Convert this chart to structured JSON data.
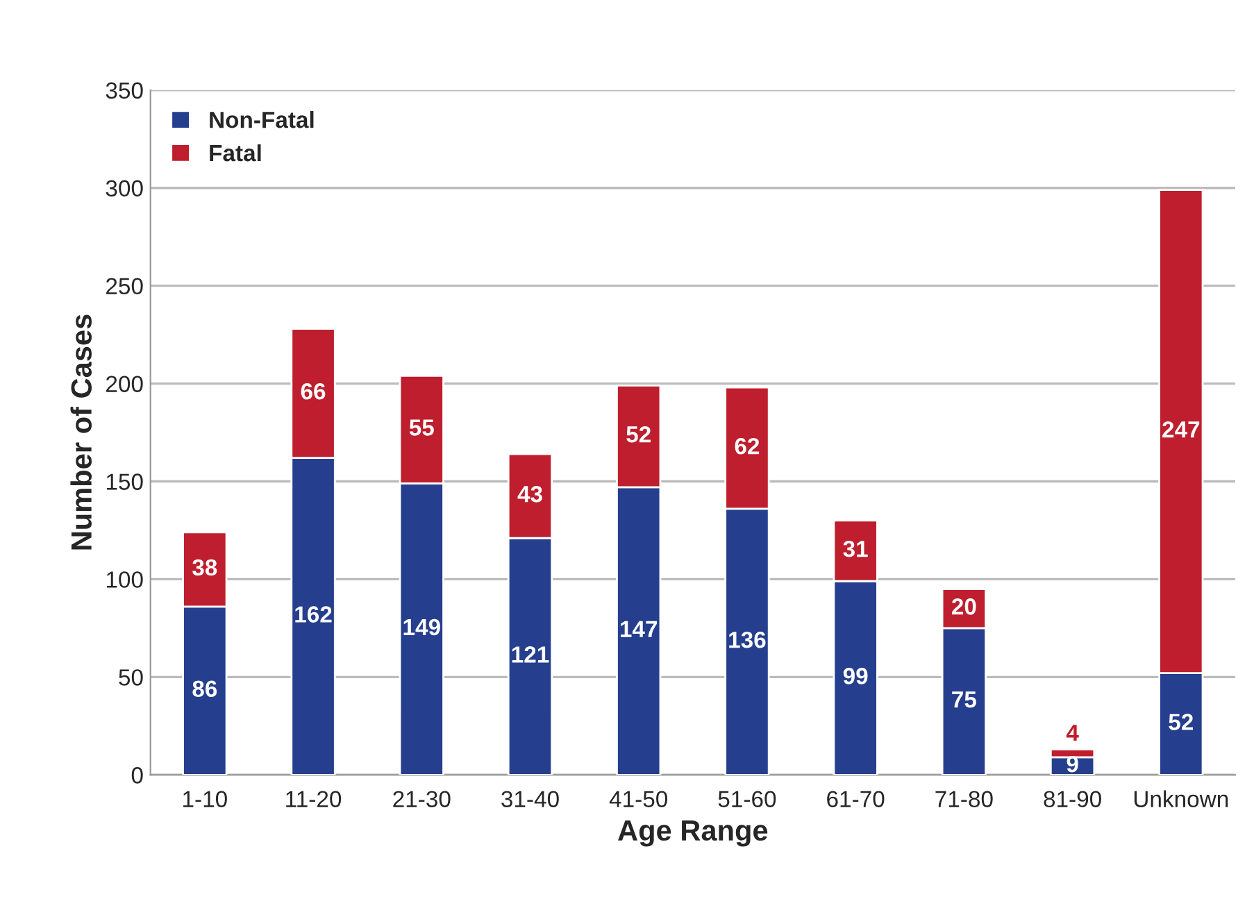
{
  "chart_data": {
    "type": "bar",
    "stacked": true,
    "xlabel": "Age Range",
    "ylabel": "Number of Cases",
    "categories": [
      "1-10",
      "11-20",
      "21-30",
      "31-40",
      "41-50",
      "51-60",
      "61-70",
      "71-80",
      "81-90",
      "Unknown"
    ],
    "series": [
      {
        "name": "Non-Fatal",
        "color": "#253f8e",
        "values": [
          86,
          162,
          149,
          121,
          147,
          136,
          99,
          75,
          9,
          52
        ]
      },
      {
        "name": "Fatal",
        "color": "#be1e2d",
        "values": [
          38,
          66,
          55,
          43,
          52,
          62,
          31,
          20,
          4,
          247
        ]
      }
    ],
    "ylim": [
      0,
      350
    ],
    "yticks": [
      0,
      50,
      100,
      150,
      200,
      250,
      300,
      350
    ],
    "grid": "y",
    "legend": "top left",
    "data_labels": true
  }
}
